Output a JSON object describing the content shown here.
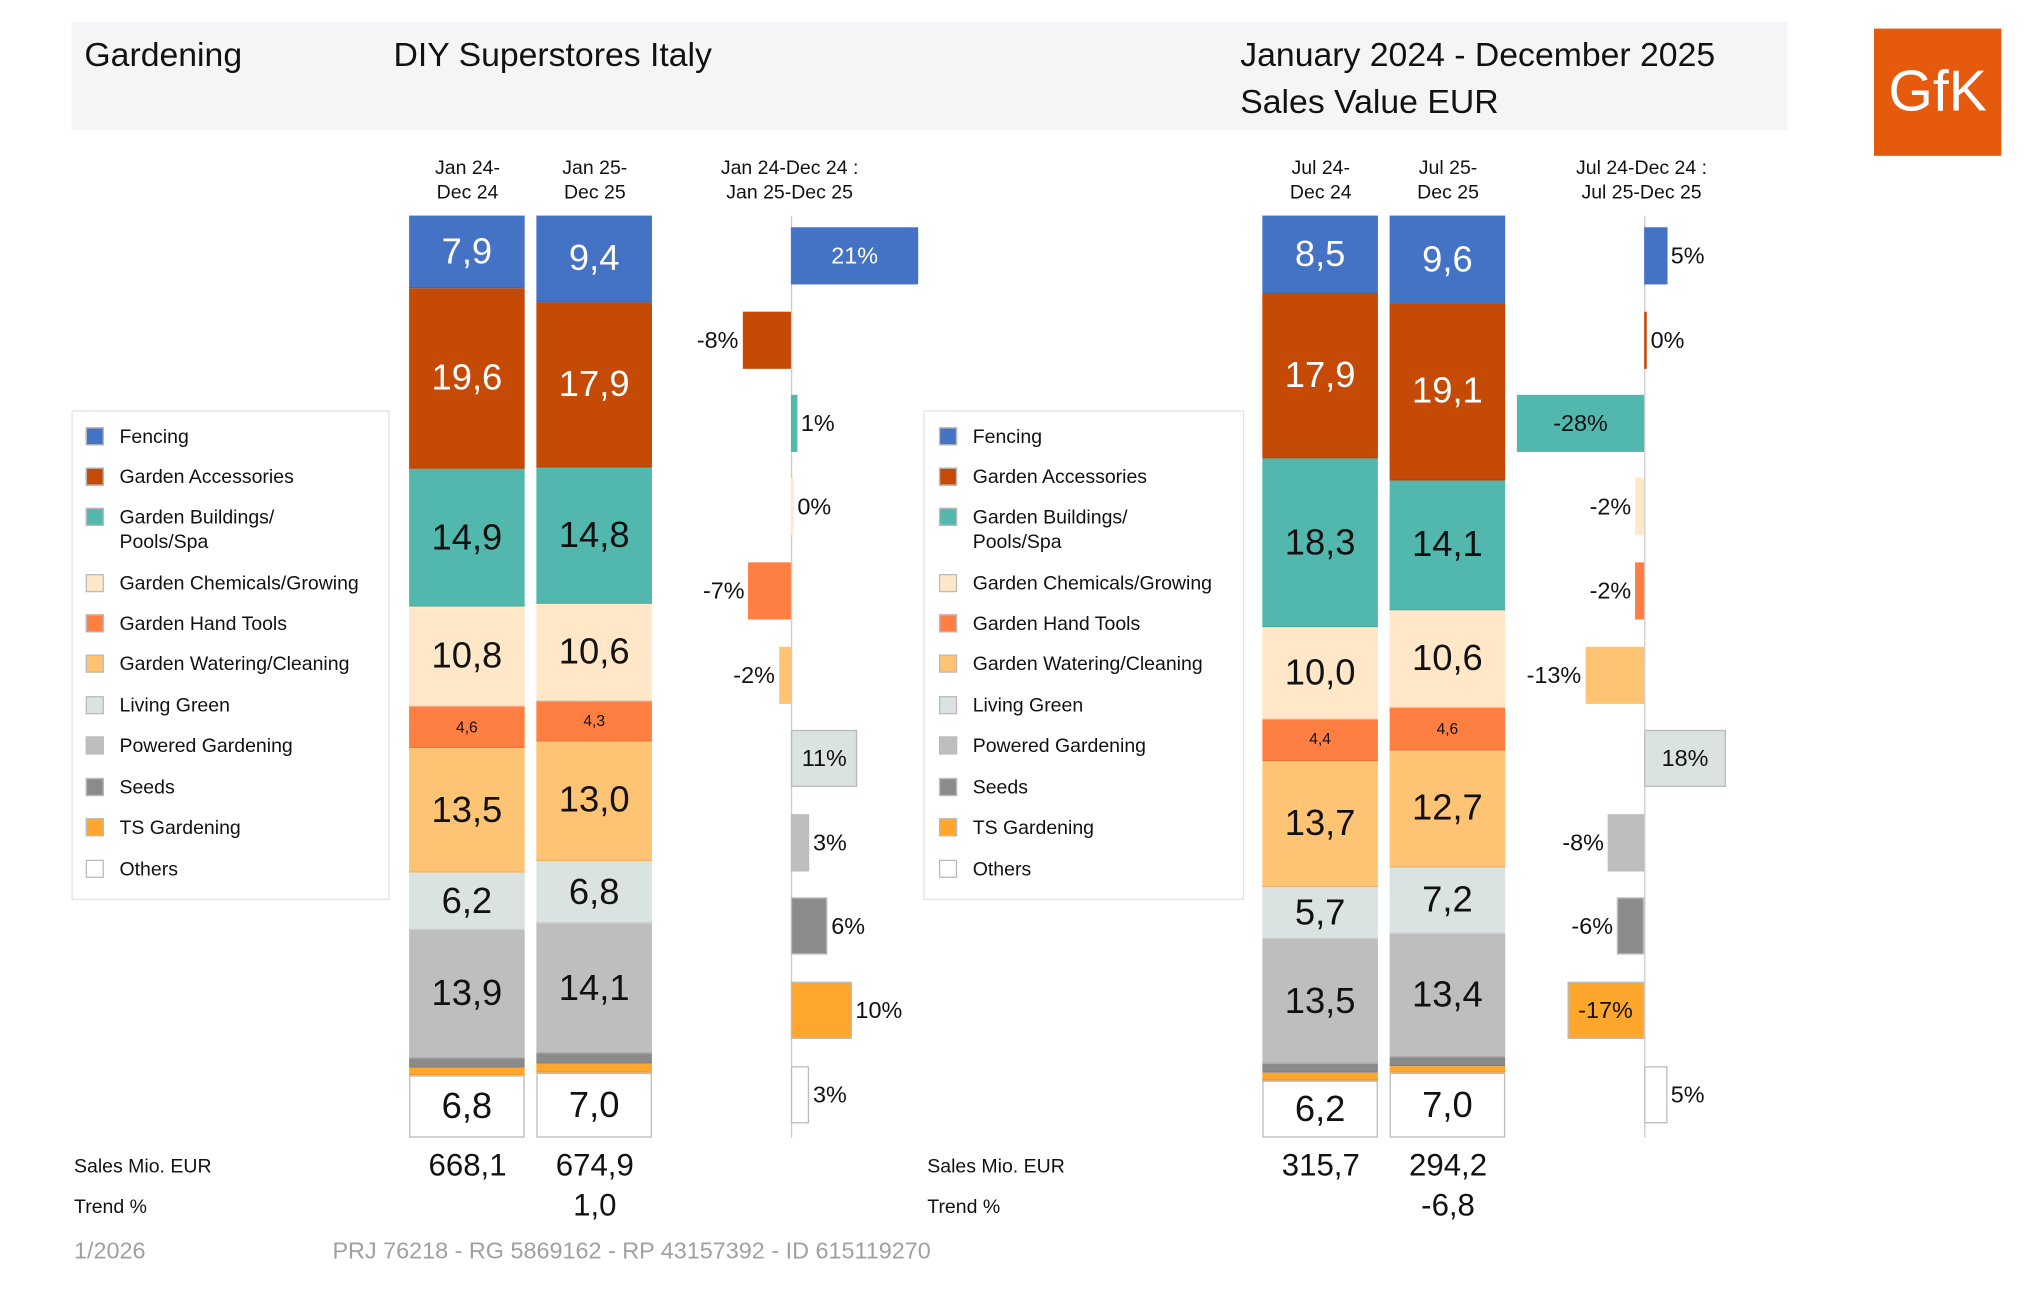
{
  "header": {
    "category": "Gardening",
    "channel": "DIY Superstores Italy",
    "period": "January 2024 - December 2025",
    "measure": "Sales Value EUR",
    "logo": "GfK"
  },
  "colors": {
    "Fencing": "#4472C4",
    "Garden Accessories": "#C44A06",
    "Garden Buildings/ Pools/Spa": "#52B8AE",
    "Garden Chemicals/Growing": "#FFE7C8",
    "Garden Hand Tools": "#FF7F42",
    "Garden Watering/Cleaning": "#FFC374",
    "Living Green": "#DAE2E2",
    "Powered Gardening": "#BEBEBE",
    "Seeds": "#8B8B8B",
    "TS Gardening": "#FFA62C",
    "Others": "#FFFFFF"
  },
  "chart_data": [
    {
      "type": "stacked-bar",
      "categories": [
        "Fencing",
        "Garden Accessories",
        "Garden Buildings/ Pools/Spa",
        "Garden Chemicals/Growing",
        "Garden Hand Tools",
        "Garden Watering/Cleaning",
        "Living Green",
        "Powered Gardening",
        "Seeds",
        "TS Gardening",
        "Others"
      ],
      "series": [
        {
          "name": "Jan 24-\nDec 24",
          "values": [
            7.9,
            19.6,
            14.9,
            10.8,
            4.6,
            13.5,
            6.2,
            13.9,
            1.0,
            0.8,
            6.8
          ],
          "labels": [
            "7,9",
            "19,6",
            "14,9",
            "10,8",
            "4,6",
            "13,5",
            "6,2",
            "13,9",
            "",
            "",
            "6,8"
          ],
          "sales": "668,1",
          "trend": ""
        },
        {
          "name": "Jan 25-\nDec 25",
          "values": [
            9.4,
            17.9,
            14.8,
            10.6,
            4.3,
            13.0,
            6.8,
            14.1,
            1.1,
            1.0,
            7.0
          ],
          "labels": [
            "9,4",
            "17,9",
            "14,8",
            "10,6",
            "4,3",
            "13,0",
            "6,8",
            "14,1",
            "",
            "",
            "7,0"
          ],
          "sales": "674,9",
          "trend": "1,0"
        }
      ],
      "change": {
        "title": "Jan 24-Dec 24 :\nJan 25-Dec 25",
        "values": [
          21,
          -8,
          1,
          0,
          -7,
          -2,
          11,
          3,
          6,
          10,
          3
        ],
        "labels": [
          "21%",
          "-8%",
          "1%",
          "0%",
          "-7%",
          "-2%",
          "11%",
          "3%",
          "6%",
          "10%",
          "3%"
        ]
      },
      "unit": "%"
    },
    {
      "type": "stacked-bar",
      "categories": [
        "Fencing",
        "Garden Accessories",
        "Garden Buildings/ Pools/Spa",
        "Garden Chemicals/Growing",
        "Garden Hand Tools",
        "Garden Watering/Cleaning",
        "Living Green",
        "Powered Gardening",
        "Seeds",
        "TS Gardening",
        "Others"
      ],
      "series": [
        {
          "name": "Jul 24-\nDec 24",
          "values": [
            8.5,
            17.9,
            18.3,
            10.0,
            4.4,
            13.7,
            5.7,
            13.5,
            1.0,
            0.8,
            6.2
          ],
          "labels": [
            "8,5",
            "17,9",
            "18,3",
            "10,0",
            "4,4",
            "13,7",
            "5,7",
            "13,5",
            "",
            "",
            "6,2"
          ],
          "sales": "315,7",
          "trend": ""
        },
        {
          "name": "Jul 25-\nDec 25",
          "values": [
            9.6,
            19.1,
            14.1,
            10.6,
            4.6,
            12.7,
            7.2,
            13.4,
            0.9,
            0.8,
            7.0
          ],
          "labels": [
            "9,6",
            "19,1",
            "14,1",
            "10,6",
            "4,6",
            "12,7",
            "7,2",
            "13,4",
            "",
            "",
            "7,0"
          ],
          "sales": "294,2",
          "trend": "-6,8"
        }
      ],
      "change": {
        "title": "Jul 24-Dec 24 :\nJul 25-Dec 25",
        "values": [
          5,
          0,
          -28,
          -2,
          -2,
          -13,
          18,
          -8,
          -6,
          -17,
          5
        ],
        "labels": [
          "5%",
          "0%",
          "-28%",
          "-2%",
          "-2%",
          "-13%",
          "18%",
          "-8%",
          "-6%",
          "-17%",
          "5%"
        ]
      },
      "unit": "%"
    }
  ],
  "legend": [
    "Fencing",
    "Garden Accessories",
    "Garden Buildings/\nPools/Spa",
    "Garden Chemicals/Growing",
    "Garden Hand Tools",
    "Garden Watering/Cleaning",
    "Living Green",
    "Powered Gardening",
    "Seeds",
    "TS Gardening",
    "Others"
  ],
  "footer": {
    "sales_label": "Sales Mio. EUR",
    "trend_label": "Trend %",
    "date": "1/2026",
    "ids": "PRJ 76218 - RG 5869162 - RP 43157392 - ID 615119270"
  }
}
